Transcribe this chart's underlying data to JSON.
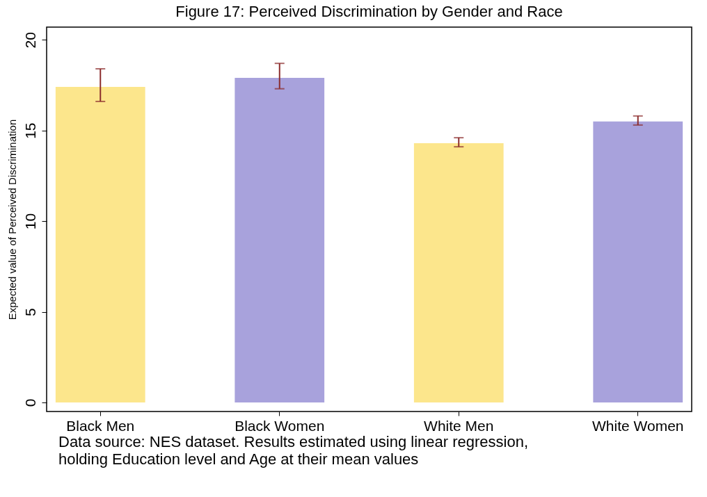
{
  "chart_data": {
    "type": "bar",
    "title": "Figure 17: Perceived Discrimination by Gender and Race",
    "ylabel": "Expected value of Perceived Discrimination",
    "categories": [
      "Black Men",
      "Black Women",
      "White Men",
      "White Women"
    ],
    "values": [
      17.4,
      17.9,
      14.3,
      15.5
    ],
    "colors": [
      "#fce68c",
      "#a8a2dc",
      "#fce68c",
      "#a8a2dc"
    ],
    "errors": [
      [
        16.6,
        18.4
      ],
      [
        17.3,
        18.7
      ],
      [
        14.1,
        14.6
      ],
      [
        15.3,
        15.8
      ]
    ],
    "ylim": [
      -0.5,
      20.7
    ],
    "yticks": [
      0,
      5,
      10,
      15,
      20
    ],
    "grid": false,
    "annotations": [
      "Data source: NES dataset. Results estimated using linear regression,\nholding Education level and Age at their mean values"
    ]
  }
}
